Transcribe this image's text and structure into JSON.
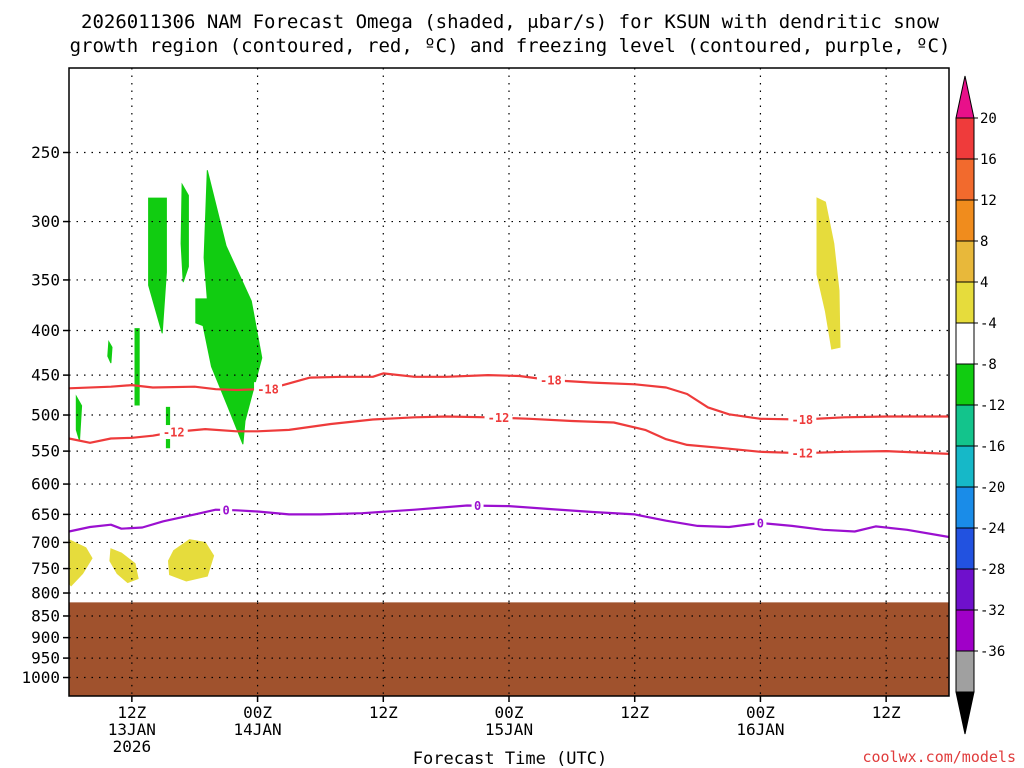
{
  "title": {
    "line1": "2026011306 NAM Forecast Omega (shaded, μbar/s) for KSUN with dendritic snow",
    "line2": "growth region (contoured, red, ºC) and freezing level (contoured, purple, ºC)"
  },
  "credit": "coolwx.com/models",
  "chart_data": {
    "type": "contour",
    "title": "2026011306 NAM Forecast Omega (shaded, μbar/s) for KSUN with dendritic snow growth region (contoured, red, ºC) and freezing level (contoured, purple, ºC)",
    "xlabel": "Forecast Time (UTC)",
    "ylabel": "",
    "y_axis": {
      "unit": "hPa",
      "scale": "log-pressure",
      "inverted": true,
      "ylim": [
        1050,
        200
      ],
      "ticks": [
        250,
        300,
        350,
        400,
        450,
        500,
        550,
        600,
        650,
        700,
        750,
        800,
        850,
        900,
        950,
        1000
      ],
      "tick_labels": [
        "250",
        "300",
        "350",
        "400",
        "450",
        "500",
        "550",
        "600",
        "650",
        "700",
        "750",
        "800",
        "850",
        "900",
        "950",
        "1000"
      ]
    },
    "x_axis": {
      "unit": "forecast hour",
      "xlim": [
        0,
        84
      ],
      "ticks": [
        6,
        18,
        30,
        42,
        54,
        66,
        78
      ],
      "tick_labels": [
        [
          "12Z",
          "13JAN",
          "2026"
        ],
        [
          "00Z",
          "14JAN"
        ],
        [
          "12Z"
        ],
        [
          "00Z",
          "15JAN"
        ],
        [
          "12Z"
        ],
        [
          "00Z",
          "16JAN"
        ],
        [
          "12Z"
        ]
      ]
    },
    "grid": true,
    "ground": {
      "color": "#a0522d",
      "surface_pressure_hpa": 820
    },
    "colorbar": {
      "orientation": "vertical",
      "placement": "right",
      "labels": [
        "20",
        "16",
        "12",
        "8",
        "4",
        "-4",
        "-8",
        "-12",
        "-16",
        "-20",
        "-24",
        "-28",
        "-32",
        "-36"
      ],
      "colors": [
        "#ef3b3b",
        "#f26a2d",
        "#f08c1d",
        "#e8b83a",
        "#e6dc3c",
        "#ffffff",
        "#11cc11",
        "#13c48c",
        "#16b8c8",
        "#1a8ce8",
        "#2252e0",
        "#6f10cc",
        "#a000c8",
        "#a0a0a0"
      ],
      "top_arrow_color": "#e8108a",
      "bottom_arrow_color": "#000000"
    },
    "contours": [
      {
        "variable": "temperature",
        "level": -18,
        "color": "#ee3b3b",
        "label": "-18",
        "label_positions": [
          19,
          46,
          70
        ],
        "points": [
          [
            0,
            466
          ],
          [
            4,
            464
          ],
          [
            6,
            462
          ],
          [
            8,
            465
          ],
          [
            12,
            464
          ],
          [
            14,
            467
          ],
          [
            16,
            468
          ],
          [
            18,
            467
          ],
          [
            19,
            467
          ],
          [
            21,
            460
          ],
          [
            23,
            453
          ],
          [
            26,
            452
          ],
          [
            29,
            452
          ],
          [
            30,
            448
          ],
          [
            33,
            452
          ],
          [
            36,
            452
          ],
          [
            40,
            450
          ],
          [
            43,
            451
          ],
          [
            46,
            456
          ],
          [
            50,
            459
          ],
          [
            54,
            461
          ],
          [
            57,
            465
          ],
          [
            59,
            473
          ],
          [
            61,
            490
          ],
          [
            63,
            499
          ],
          [
            66,
            505
          ],
          [
            70,
            506
          ],
          [
            74,
            503
          ],
          [
            78,
            502
          ],
          [
            84,
            502
          ]
        ]
      },
      {
        "variable": "temperature",
        "level": -12,
        "color": "#ee3b3b",
        "label": "-12",
        "label_positions": [
          10,
          41,
          70
        ],
        "points": [
          [
            0,
            532
          ],
          [
            2,
            538
          ],
          [
            4,
            532
          ],
          [
            6,
            531
          ],
          [
            8,
            528
          ],
          [
            10,
            523
          ],
          [
            13,
            519
          ],
          [
            16,
            522
          ],
          [
            18,
            522
          ],
          [
            21,
            520
          ],
          [
            25,
            512
          ],
          [
            29,
            506
          ],
          [
            33,
            503
          ],
          [
            36,
            502
          ],
          [
            40,
            503
          ],
          [
            44,
            505
          ],
          [
            48,
            508
          ],
          [
            52,
            510
          ],
          [
            55,
            520
          ],
          [
            57,
            533
          ],
          [
            59,
            541
          ],
          [
            62,
            545
          ],
          [
            66,
            551
          ],
          [
            70,
            553
          ],
          [
            74,
            551
          ],
          [
            78,
            550
          ],
          [
            84,
            554
          ]
        ]
      },
      {
        "variable": "temperature",
        "level": 0,
        "color": "#9b10d0",
        "label": "0",
        "label_positions": [
          15,
          39,
          66
        ],
        "points": [
          [
            0,
            680
          ],
          [
            2,
            672
          ],
          [
            4,
            668
          ],
          [
            5,
            675
          ],
          [
            7,
            673
          ],
          [
            9,
            662
          ],
          [
            12,
            650
          ],
          [
            14,
            642
          ],
          [
            16,
            643
          ],
          [
            18,
            645
          ],
          [
            21,
            650
          ],
          [
            24,
            650
          ],
          [
            28,
            648
          ],
          [
            33,
            642
          ],
          [
            38,
            635
          ],
          [
            42,
            636
          ],
          [
            46,
            641
          ],
          [
            50,
            646
          ],
          [
            54,
            650
          ],
          [
            57,
            661
          ],
          [
            60,
            670
          ],
          [
            63,
            672
          ],
          [
            66,
            665
          ],
          [
            69,
            670
          ],
          [
            72,
            677
          ],
          [
            75,
            680
          ],
          [
            77,
            671
          ],
          [
            80,
            677
          ],
          [
            84,
            690
          ]
        ]
      }
    ],
    "shaded_regions": [
      {
        "color": "#11cc11",
        "value_range": [
          -8,
          -4
        ],
        "polygon": [
          [
            7.6,
            282
          ],
          [
            9.3,
            282
          ],
          [
            9.3,
            343
          ],
          [
            8.9,
            403
          ],
          [
            7.6,
            355
          ]
        ]
      },
      {
        "color": "#11cc11",
        "value_range": [
          -8,
          -4
        ],
        "polygon": [
          [
            10.8,
            272
          ],
          [
            11.4,
            280
          ],
          [
            11.4,
            338
          ],
          [
            10.9,
            352
          ],
          [
            10.7,
            318
          ]
        ]
      },
      {
        "color": "#11cc11",
        "value_range": [
          -8,
          -4
        ],
        "polygon": [
          [
            13.2,
            262
          ],
          [
            15.0,
            320
          ],
          [
            17.4,
            370
          ],
          [
            18.4,
            430
          ],
          [
            16.8,
            508
          ],
          [
            16.6,
            540
          ],
          [
            15.2,
            490
          ],
          [
            13.6,
            440
          ],
          [
            12.8,
            395
          ],
          [
            12.1,
            392
          ],
          [
            12.1,
            368
          ],
          [
            13.2,
            368
          ],
          [
            12.9,
            330
          ]
        ]
      },
      {
        "color": "#11cc11",
        "value_range": [
          -8,
          -4
        ],
        "polygon": [
          [
            6.3,
            398
          ],
          [
            6.7,
            398
          ],
          [
            6.7,
            487
          ],
          [
            6.3,
            487
          ]
        ]
      },
      {
        "color": "#11cc11",
        "value_range": [
          -8,
          -4
        ],
        "polygon": [
          [
            3.8,
            412
          ],
          [
            4.1,
            418
          ],
          [
            4.0,
            436
          ],
          [
            3.7,
            428
          ]
        ]
      },
      {
        "color": "#11cc11",
        "value_range": [
          -8,
          -4
        ],
        "polygon": [
          [
            0.7,
            476
          ],
          [
            1.2,
            488
          ],
          [
            1.0,
            535
          ],
          [
            0.7,
            520
          ]
        ]
      },
      {
        "color": "#11cc11",
        "value_range": [
          -8,
          -4
        ],
        "polygon": [
          [
            9.3,
            490
          ],
          [
            9.6,
            490
          ],
          [
            9.6,
            545
          ],
          [
            9.3,
            545
          ]
        ]
      },
      {
        "color": "#e6dc3c",
        "value_range": [
          4,
          8
        ],
        "polygon": [
          [
            71.4,
            282
          ],
          [
            72.2,
            285
          ],
          [
            73.0,
            318
          ],
          [
            73.5,
            360
          ],
          [
            73.6,
            418
          ],
          [
            72.8,
            420
          ],
          [
            72.2,
            380
          ],
          [
            71.4,
            345
          ]
        ]
      },
      {
        "color": "#e6dc3c",
        "value_range": [
          4,
          8
        ],
        "polygon": [
          [
            0,
            695
          ],
          [
            1.6,
            710
          ],
          [
            2.2,
            730
          ],
          [
            1.3,
            760
          ],
          [
            0.2,
            785
          ],
          [
            0,
            780
          ]
        ]
      },
      {
        "color": "#e6dc3c",
        "value_range": [
          4,
          8
        ],
        "polygon": [
          [
            4.0,
            712
          ],
          [
            5.0,
            720
          ],
          [
            6.3,
            740
          ],
          [
            6.6,
            770
          ],
          [
            5.6,
            778
          ],
          [
            4.6,
            760
          ],
          [
            3.9,
            735
          ]
        ]
      },
      {
        "color": "#e6dc3c",
        "value_range": [
          4,
          8
        ],
        "polygon": [
          [
            10.0,
            715
          ],
          [
            11.5,
            695
          ],
          [
            13.0,
            700
          ],
          [
            13.8,
            725
          ],
          [
            13.2,
            765
          ],
          [
            11.2,
            775
          ],
          [
            9.6,
            762
          ],
          [
            9.5,
            735
          ]
        ]
      }
    ]
  }
}
